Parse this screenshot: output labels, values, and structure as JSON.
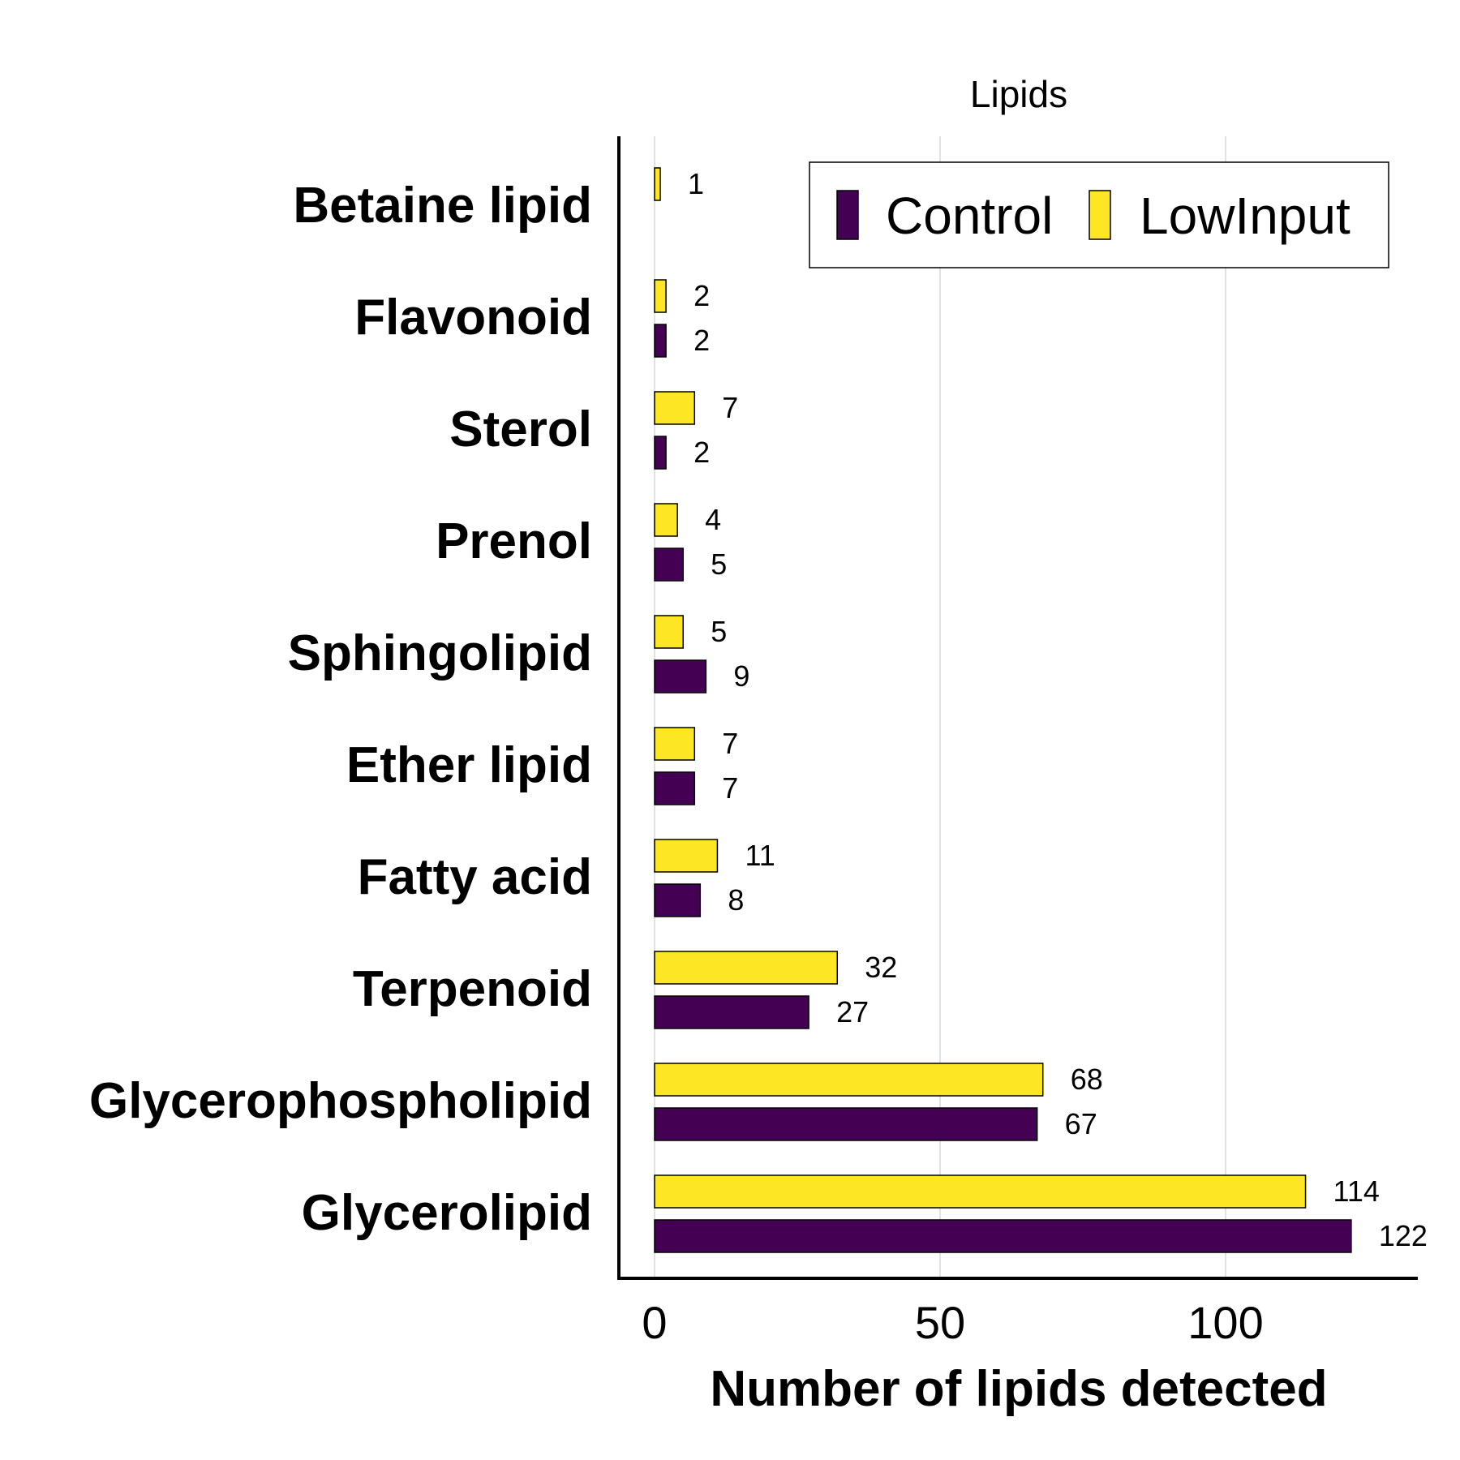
{
  "chart_data": {
    "type": "bar",
    "orientation": "horizontal",
    "title": "Lipids",
    "xlabel": "Number of lipids detected",
    "ylabel": "",
    "xlim": [
      0,
      130
    ],
    "xticks": [
      0,
      50,
      100
    ],
    "grid": true,
    "legend_position": "top-right",
    "categories": [
      "Betaine lipid",
      "Flavonoid",
      "Sterol",
      "Prenol",
      "Sphingolipid",
      "Ether lipid",
      "Fatty acid",
      "Terpenoid",
      "Glycerophospholipid",
      "Glycerolipid"
    ],
    "series": [
      {
        "name": "Control",
        "color": "#440154",
        "values": [
          null,
          2,
          2,
          5,
          9,
          7,
          8,
          27,
          67,
          122
        ]
      },
      {
        "name": "LowInput",
        "color": "#FDE725",
        "values": [
          1,
          2,
          7,
          4,
          5,
          7,
          11,
          32,
          68,
          114
        ]
      }
    ]
  }
}
